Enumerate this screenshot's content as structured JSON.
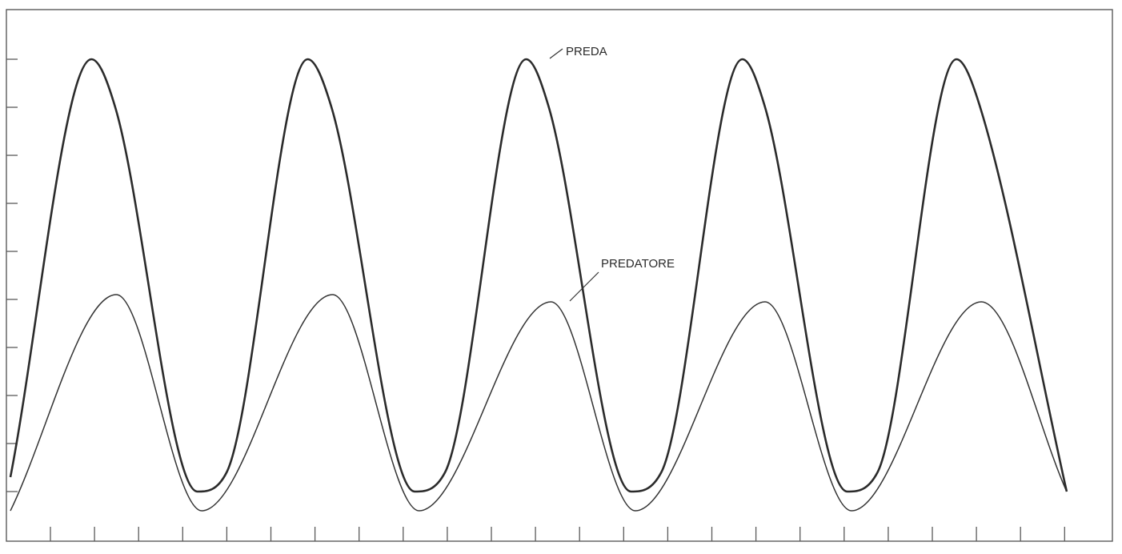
{
  "chart_data": {
    "type": "line",
    "title": "",
    "xlabel": "",
    "ylabel": "",
    "xlim": [
      0,
      1000
    ],
    "ylim": [
      0,
      10
    ],
    "x_tick_count": 24,
    "y_tick_count": 10,
    "grid": false,
    "annotations": [
      {
        "text": "PREDA",
        "series": "prey"
      },
      {
        "text": "PREDATORE",
        "series": "predator"
      }
    ],
    "series": [
      {
        "id": "prey",
        "color": "#2b2b2b",
        "points": [
          [
            0,
            0.3
          ],
          [
            75,
            9.0
          ],
          [
            97,
            8.0
          ],
          [
            173,
            0.0
          ],
          [
            200,
            0.4
          ],
          [
            275,
            9.0
          ],
          [
            297,
            8.0
          ],
          [
            374,
            0.0
          ],
          [
            402,
            0.4
          ],
          [
            477,
            9.0
          ],
          [
            498,
            8.0
          ],
          [
            574,
            0.0
          ],
          [
            602,
            0.4
          ],
          [
            677,
            9.0
          ],
          [
            698,
            8.0
          ],
          [
            774,
            0.0
          ],
          [
            802,
            0.4
          ],
          [
            875,
            9.0
          ],
          [
            897,
            8.0
          ],
          [
            977,
            0.0
          ]
        ]
      },
      {
        "id": "predator",
        "color": "#333333",
        "points": [
          [
            0,
            -0.4
          ],
          [
            98,
            4.1
          ],
          [
            177,
            -0.4
          ],
          [
            298,
            4.1
          ],
          [
            378,
            -0.4
          ],
          [
            500,
            3.95
          ],
          [
            578,
            -0.4
          ],
          [
            698,
            3.95
          ],
          [
            778,
            -0.4
          ],
          [
            898,
            3.95
          ],
          [
            977,
            0.0
          ]
        ]
      }
    ]
  }
}
